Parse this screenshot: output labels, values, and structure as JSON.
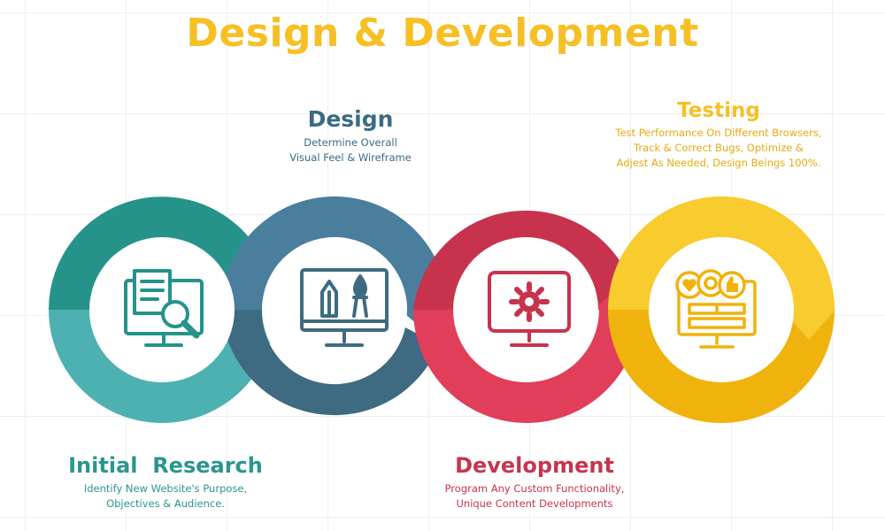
{
  "title": "Design & Development",
  "stages": [
    {
      "key": "research",
      "title": "Initial  Research",
      "lines": [
        "Identify New Website's Purpose,",
        "Objectives & Audience."
      ],
      "colors": {
        "dark": "#259389",
        "light": "#4eb1b1"
      }
    },
    {
      "key": "design",
      "title": "Design",
      "lines": [
        "Determine Overall",
        "Visual Feel & Wireframe"
      ],
      "colors": {
        "dark": "#3e6b82",
        "light": "#497f9d"
      }
    },
    {
      "key": "development",
      "title": "Development",
      "lines": [
        "Program Any Custom Functionality,",
        "Unique Content Developments"
      ],
      "colors": {
        "dark": "#c7334d",
        "light": "#e03e59"
      }
    },
    {
      "key": "testing",
      "title": "Testing",
      "lines": [
        "Test Performance On Different Browsers,",
        "Track & Correct Bugs, Optimize &",
        "Adjest As Needed, Design Beings 100%."
      ],
      "colors": {
        "dark": "#f0b20c",
        "light": "#f8cb2e"
      }
    }
  ],
  "icons": [
    "research-monitor-icon",
    "design-tools-monitor-icon",
    "gear-monitor-icon",
    "feedback-monitor-icon"
  ],
  "colors": {
    "title": "#f6c025"
  }
}
